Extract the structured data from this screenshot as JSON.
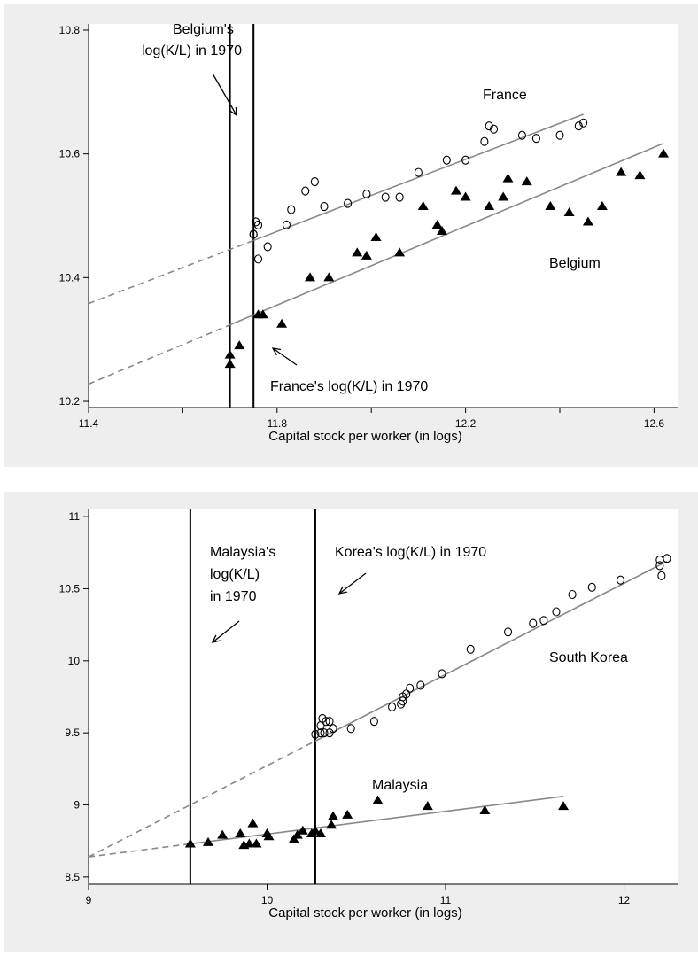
{
  "chart_data": [
    {
      "type": "scatter",
      "xlabel": "Capital stock per worker (in logs)",
      "ylabel": "",
      "xlim": [
        11.4,
        12.65
      ],
      "ylim": [
        10.19,
        10.81
      ],
      "xticks": [
        "11.4",
        "11.6",
        "11.8",
        "12",
        "12.2",
        "12.4",
        "12.6"
      ],
      "yticks": [
        "10.2",
        "10.4",
        "10.6",
        "10.8"
      ],
      "xtick_values": [
        11.4,
        11.6,
        11.8,
        12.0,
        12.2,
        12.4,
        12.6
      ],
      "ytick_values": [
        10.2,
        10.4,
        10.6,
        10.8
      ],
      "labeled_xticks": [
        11.4,
        11.8,
        12.2,
        12.6
      ],
      "labeled_yticks": [
        10.2,
        10.4,
        10.6,
        10.8
      ],
      "vlines": [
        11.7,
        11.75
      ],
      "annotations": [
        {
          "id": "belgium-note",
          "lines": [
            "Belgium's",
            "log(K/L) in 1970"
          ]
        },
        {
          "id": "france-note",
          "lines": [
            "France's log(K/L) in 1970"
          ]
        }
      ],
      "series": [
        {
          "name": "France",
          "marker": "circle",
          "points": [
            [
              11.75,
              10.47
            ],
            [
              11.755,
              10.49
            ],
            [
              11.76,
              10.485
            ],
            [
              11.75,
              10.47
            ],
            [
              11.76,
              10.43
            ],
            [
              11.78,
              10.45
            ],
            [
              11.82,
              10.485
            ],
            [
              11.83,
              10.51
            ],
            [
              11.86,
              10.54
            ],
            [
              11.88,
              10.555
            ],
            [
              11.9,
              10.515
            ],
            [
              11.95,
              10.52
            ],
            [
              11.99,
              10.535
            ],
            [
              12.03,
              10.53
            ],
            [
              12.06,
              10.53
            ],
            [
              12.1,
              10.57
            ],
            [
              12.16,
              10.59
            ],
            [
              12.2,
              10.59
            ],
            [
              12.24,
              10.62
            ],
            [
              12.25,
              10.645
            ],
            [
              12.26,
              10.64
            ],
            [
              12.32,
              10.63
            ],
            [
              12.35,
              10.625
            ],
            [
              12.4,
              10.63
            ],
            [
              12.44,
              10.645
            ],
            [
              12.45,
              10.65
            ]
          ],
          "fit_line": {
            "x_start": 11.4,
            "y_start": 10.358,
            "x_end": 12.45,
            "y_end": 10.664,
            "dashed_until": 11.75
          }
        },
        {
          "name": "Belgium",
          "marker": "triangle",
          "points": [
            [
              11.7,
              10.26
            ],
            [
              11.7,
              10.275
            ],
            [
              11.72,
              10.29
            ],
            [
              11.76,
              10.34
            ],
            [
              11.77,
              10.34
            ],
            [
              11.81,
              10.325
            ],
            [
              11.87,
              10.4
            ],
            [
              11.91,
              10.4
            ],
            [
              11.97,
              10.44
            ],
            [
              11.99,
              10.435
            ],
            [
              12.01,
              10.465
            ],
            [
              12.06,
              10.44
            ],
            [
              12.11,
              10.515
            ],
            [
              12.14,
              10.485
            ],
            [
              12.15,
              10.475
            ],
            [
              12.18,
              10.54
            ],
            [
              12.2,
              10.53
            ],
            [
              12.25,
              10.515
            ],
            [
              12.28,
              10.53
            ],
            [
              12.29,
              10.56
            ],
            [
              12.33,
              10.555
            ],
            [
              12.38,
              10.515
            ],
            [
              12.42,
              10.505
            ],
            [
              12.46,
              10.49
            ],
            [
              12.49,
              10.515
            ],
            [
              12.53,
              10.57
            ],
            [
              12.57,
              10.565
            ],
            [
              12.62,
              10.6
            ]
          ],
          "fit_line": {
            "x_start": 11.4,
            "y_start": 10.228,
            "x_end": 12.62,
            "y_end": 10.617,
            "dashed_until": 11.7
          }
        }
      ]
    },
    {
      "type": "scatter",
      "xlabel": "Capital stock per worker (in logs)",
      "ylabel": "",
      "xlim": [
        9.0,
        12.3
      ],
      "ylim": [
        8.45,
        11.05
      ],
      "xticks": [
        "9",
        "10",
        "11",
        "12"
      ],
      "yticks": [
        "8.5",
        "9",
        "9.5",
        "10",
        "10.5",
        "11"
      ],
      "xtick_values": [
        9,
        10,
        11,
        12
      ],
      "ytick_values": [
        8.5,
        9.0,
        9.5,
        10.0,
        10.5,
        11.0
      ],
      "labeled_xticks": [
        9,
        10,
        11,
        12
      ],
      "labeled_yticks": [
        8.5,
        9.0,
        9.5,
        10.0,
        10.5,
        11.0
      ],
      "vlines": [
        9.57,
        10.27
      ],
      "annotations": [
        {
          "id": "malaysia-note",
          "lines": [
            "Malaysia's",
            "log(K/L)",
            "in 1970"
          ]
        },
        {
          "id": "korea-note",
          "lines": [
            "Korea's log(K/L) in 1970"
          ]
        }
      ],
      "series": [
        {
          "name": "South Korea",
          "marker": "circle",
          "points": [
            [
              10.27,
              9.49
            ],
            [
              10.3,
              9.55
            ],
            [
              10.3,
              9.5
            ],
            [
              10.31,
              9.6
            ],
            [
              10.32,
              9.5
            ],
            [
              10.33,
              9.58
            ],
            [
              10.35,
              9.5
            ],
            [
              10.35,
              9.58
            ],
            [
              10.37,
              9.53
            ],
            [
              10.47,
              9.53
            ],
            [
              10.6,
              9.58
            ],
            [
              10.7,
              9.68
            ],
            [
              10.75,
              9.7
            ],
            [
              10.76,
              9.72
            ],
            [
              10.76,
              9.75
            ],
            [
              10.78,
              9.77
            ],
            [
              10.8,
              9.81
            ],
            [
              10.86,
              9.83
            ],
            [
              10.98,
              9.91
            ],
            [
              11.14,
              10.08
            ],
            [
              11.35,
              10.2
            ],
            [
              11.49,
              10.26
            ],
            [
              11.55,
              10.28
            ],
            [
              11.62,
              10.34
            ],
            [
              11.71,
              10.46
            ],
            [
              11.82,
              10.51
            ],
            [
              11.98,
              10.56
            ],
            [
              12.2,
              10.66
            ],
            [
              12.2,
              10.7
            ],
            [
              12.21,
              10.59
            ],
            [
              12.24,
              10.71
            ]
          ],
          "fit_line": {
            "x_start": 9.0,
            "y_start": 8.64,
            "x_end": 12.24,
            "y_end": 10.69,
            "dashed_until": 10.27
          }
        },
        {
          "name": "Malaysia",
          "marker": "triangle",
          "points": [
            [
              9.57,
              8.73
            ],
            [
              9.67,
              8.74
            ],
            [
              9.75,
              8.79
            ],
            [
              9.85,
              8.8
            ],
            [
              9.87,
              8.72
            ],
            [
              9.9,
              8.73
            ],
            [
              9.92,
              8.87
            ],
            [
              9.94,
              8.73
            ],
            [
              10.0,
              8.8
            ],
            [
              10.01,
              8.78
            ],
            [
              10.15,
              8.76
            ],
            [
              10.17,
              8.79
            ],
            [
              10.2,
              8.82
            ],
            [
              10.25,
              8.8
            ],
            [
              10.27,
              8.82
            ],
            [
              10.3,
              8.8
            ],
            [
              10.36,
              8.86
            ],
            [
              10.37,
              8.92
            ],
            [
              10.45,
              8.93
            ],
            [
              10.62,
              9.03
            ],
            [
              10.9,
              8.99
            ],
            [
              11.22,
              8.96
            ],
            [
              11.66,
              8.99
            ]
          ],
          "fit_line": {
            "x_start": 9.0,
            "y_start": 8.64,
            "x_end": 11.66,
            "y_end": 9.06,
            "dashed_until": 9.57
          }
        }
      ]
    }
  ]
}
